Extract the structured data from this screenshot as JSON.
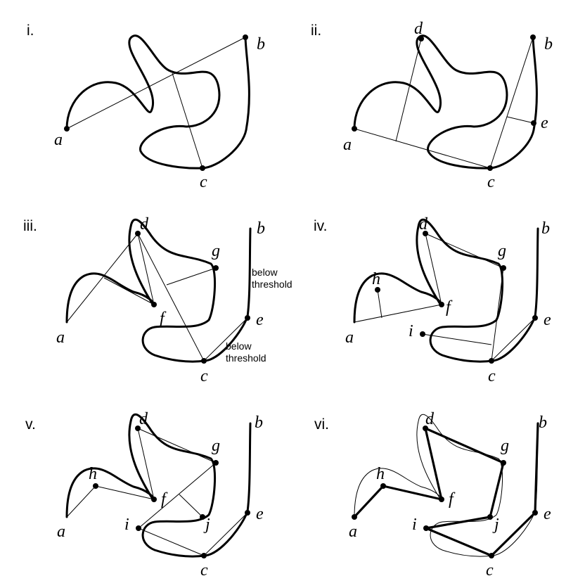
{
  "panels": [
    {
      "id": "i",
      "label": "i.",
      "points": [
        "a",
        "b",
        "c"
      ]
    },
    {
      "id": "ii",
      "label": "ii.",
      "points": [
        "a",
        "b",
        "c",
        "d",
        "e"
      ]
    },
    {
      "id": "iii",
      "label": "iii.",
      "points": [
        "a",
        "b",
        "c",
        "d",
        "e",
        "f",
        "g"
      ],
      "notes": {
        "be": [
          "below",
          "threshold"
        ],
        "ce": [
          "below",
          "threshold"
        ]
      }
    },
    {
      "id": "iv",
      "label": "iv.",
      "points": [
        "a",
        "b",
        "c",
        "d",
        "e",
        "f",
        "g",
        "h",
        "i"
      ]
    },
    {
      "id": "v",
      "label": "v.",
      "points": [
        "a",
        "b",
        "c",
        "d",
        "e",
        "f",
        "g",
        "h",
        "i",
        "j"
      ]
    },
    {
      "id": "vi",
      "label": "vi.",
      "points": [
        "a",
        "b",
        "c",
        "d",
        "e",
        "f",
        "g",
        "h",
        "i",
        "j"
      ]
    }
  ]
}
